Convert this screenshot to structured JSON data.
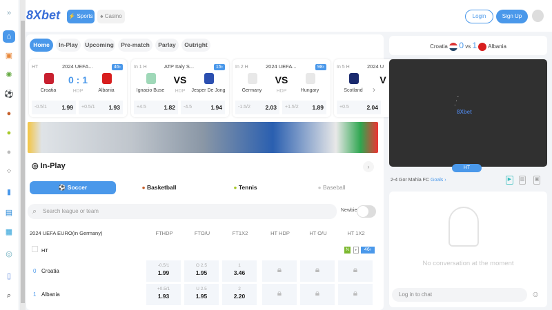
{
  "header": {
    "logo": "8Xbet",
    "sports": "Sports",
    "casino": "Casino",
    "login": "Login",
    "signup": "Sign Up"
  },
  "tabs": [
    "Home",
    "In-Play",
    "Upcoming",
    "Pre-match",
    "Parlay",
    "Outright"
  ],
  "cards": [
    {
      "status": "HT",
      "league": "2024 UEFA...",
      "count": "46",
      "home": "Croatia",
      "away": "Albania",
      "score": "0 : 1",
      "hdp": "HDP",
      "o1l": "-0.5/1",
      "o1": "1.99",
      "o2l": "+0.5/1",
      "o2": "1.93",
      "hc": "#c8202f",
      "ac": "#d81e1e"
    },
    {
      "status": "In 1 H",
      "league": "ATP Italy S...",
      "count": "15",
      "home": "Ignacio Buse",
      "away": "Jesper De Jong",
      "score": "VS",
      "hdp": "HDP",
      "o1l": "+4.5",
      "o1": "1.82",
      "o2l": "-4.5",
      "o2": "1.94",
      "hc": "#9fd8b8",
      "ac": "#2b4fb0"
    },
    {
      "status": "In 2 H",
      "league": "2024 UEFA...",
      "count": "98",
      "home": "Germany",
      "away": "Hungary",
      "score": "VS",
      "hdp": "HDP",
      "o1l": "-1.5/2",
      "o1": "2.03",
      "o2l": "+1.5/2",
      "o2": "1.89",
      "hc": "#e8e8e8",
      "ac": "#e8e8e8"
    },
    {
      "status": "In 5 H",
      "league": "2024 U",
      "count": "",
      "home": "Scotland",
      "away": "",
      "score": "V",
      "hdp": "",
      "o1l": "+0.5",
      "o1": "2.04",
      "o2l": "",
      "o2": "",
      "hc": "#1a2a6e",
      "ac": "#fff"
    }
  ],
  "inplay": {
    "title": "In-Play",
    "sports": [
      "Soccer",
      "Basketball",
      "Tennis",
      "Baseball"
    ],
    "search_placeholder": "Search league or team",
    "newbie": "Newbie"
  },
  "table": {
    "league": "2024 UEFA EURO(in Germany)",
    "cols": [
      "FTHDP",
      "FTO/U",
      "FT1X2",
      "HT HDP",
      "HT O/U",
      "HT 1X2"
    ],
    "period": "HT",
    "badge_n": "N",
    "count": "46",
    "rows": [
      {
        "score": "0",
        "team": "Croatia",
        "cells": [
          [
            "-0.5/1",
            "1.99"
          ],
          [
            "O 2.5",
            "1.95"
          ],
          [
            "1",
            "3.46"
          ]
        ]
      },
      {
        "score": "1",
        "team": "Albania",
        "cells": [
          [
            "+0.5/1",
            "1.93"
          ],
          [
            "U 2.5",
            "1.95"
          ],
          [
            "2",
            "2.20"
          ]
        ]
      }
    ]
  },
  "right": {
    "home": "Croatia",
    "home_score": "0",
    "vs": "vs",
    "away_score": "1",
    "away": "Albania",
    "video_logo": "8Xbet",
    "period": "HT",
    "goal_text": "2-4 Gor Mahia FC",
    "goals_link": "Goals",
    "no_conv": "No conversation at the moment",
    "chat_placeholder": "Log in to chat"
  },
  "colors": {
    "accent": "#4a98ea"
  }
}
